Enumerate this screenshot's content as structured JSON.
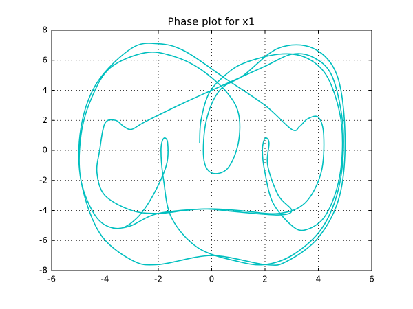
{
  "chart_data": {
    "type": "line",
    "title": "Phase plot for x1",
    "x": [
      -0.45,
      -0.4,
      -0.1,
      0.5,
      1.2,
      2.5,
      3.5,
      4.3,
      4.8,
      4.9,
      4.7,
      4.2,
      3.5,
      3,
      2.3,
      2,
      1.9,
      2,
      2.15,
      2.1,
      2.5,
      3,
      2.5,
      1,
      -0.2,
      -1,
      -2,
      -3,
      -4,
      -4.3,
      -4.2,
      -4,
      -3.6,
      -3.3,
      -3,
      -2.5,
      -1,
      0,
      1,
      2,
      3,
      3.8,
      4.5,
      4.9,
      4.9,
      4.6,
      4,
      3,
      2,
      1,
      -0.5,
      -1.5,
      -1.8,
      -1.9,
      -1.8,
      -1.65,
      -1.7,
      -2.2,
      -2.8,
      -3.5,
      -4.3,
      -4.9,
      -4.9,
      -4.5,
      -3.8,
      -2.5,
      -1.5,
      -0.5,
      0.5,
      1,
      1,
      0.6,
      0,
      -0.3,
      -0.2,
      0.3,
      1.2,
      2.5,
      3.8,
      4.7,
      5,
      4.8,
      4,
      2.8,
      2,
      0,
      -2,
      -3,
      -4.2,
      -4.9,
      -4.9,
      -4.3,
      -3,
      -2,
      -1,
      0.5,
      2,
      3,
      3.3,
      3.6,
      4,
      4.2,
      4.1,
      3.5,
      2.5,
      1,
      -0.2,
      -2,
      -3,
      -3.5
    ],
    "series": [
      {
        "color": "#00bfbf",
        "values": [
          0.5,
          2,
          3.8,
          5,
          5.8,
          6.4,
          6.2,
          5,
          2.5,
          0,
          -2.5,
          -4.5,
          -5.3,
          -5,
          -3.5,
          -1.5,
          0,
          0.8,
          0.5,
          -1,
          -3,
          -4,
          -4.3,
          -4.1,
          -3.9,
          -4,
          -4.2,
          -4,
          -3,
          -1.5,
          0,
          1.8,
          2,
          1.6,
          1.4,
          1.9,
          3.2,
          4,
          4.8,
          5.6,
          6.4,
          6.2,
          5,
          2,
          -1,
          -3.5,
          -5.5,
          -7,
          -7.6,
          -7.4,
          -6.5,
          -4.5,
          -2,
          0,
          0.8,
          0.5,
          -1,
          -3,
          -4.5,
          -5.2,
          -4.5,
          -2,
          1,
          3.5,
          5.5,
          6.5,
          6.3,
          5.5,
          4,
          2.5,
          0.5,
          -1.2,
          -1.5,
          -0.5,
          2,
          4,
          5,
          6.8,
          6.8,
          5,
          1,
          -3,
          -5.8,
          -7.4,
          -7.6,
          -7,
          -7.6,
          -7.3,
          -5.5,
          -2,
          1.5,
          4.5,
          6.8,
          7.1,
          6.6,
          4.8,
          3,
          1.4,
          1.6,
          2.1,
          2.2,
          1,
          -1.5,
          -3.5,
          -4.2,
          -4,
          -3.9,
          -4.2,
          -5,
          -5.2
        ]
      }
    ],
    "xlim": [
      -6,
      6
    ],
    "xticks": [
      -6,
      -4,
      -2,
      0,
      2,
      4,
      6
    ],
    "ylim": [
      -8,
      8
    ],
    "yticks": [
      -8,
      -6,
      -4,
      -2,
      0,
      2,
      4,
      6,
      8
    ],
    "grid": true
  }
}
